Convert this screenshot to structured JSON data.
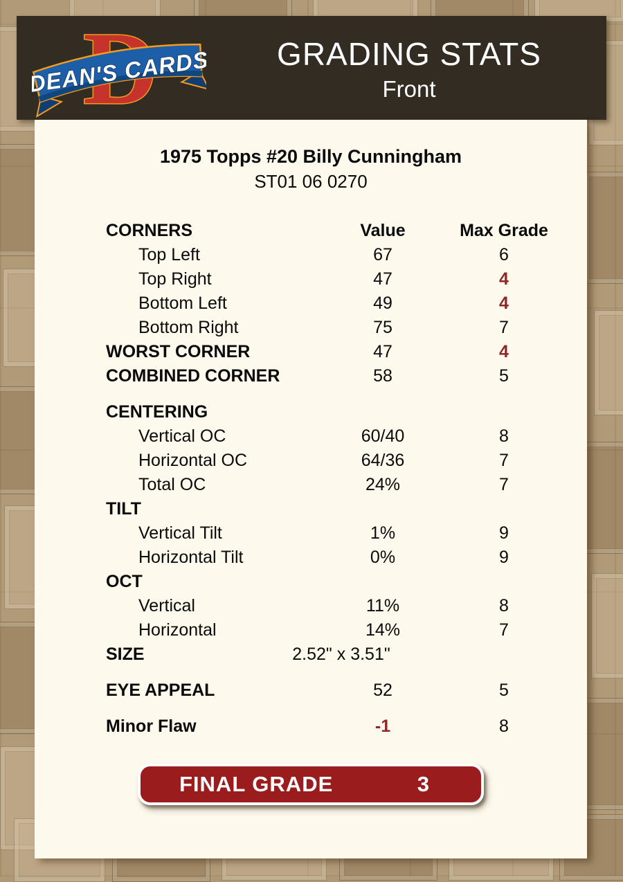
{
  "header": {
    "title": "GRADING STATS",
    "subtitle": "Front",
    "logo_letter": "D",
    "logo_text": "DEAN'S CARDS"
  },
  "card": {
    "title": "1975 Topps #20 Billy Cunningham",
    "serial": "ST01 06 0270"
  },
  "table": {
    "rows": [
      {
        "label": "CORNERS",
        "value": "Value",
        "max": "Max Grade",
        "section": true,
        "headers": true
      },
      {
        "label": "Top Left",
        "value": "67",
        "max": "6",
        "indent": true
      },
      {
        "label": "Top Right",
        "value": "47",
        "max": "4",
        "indent": true,
        "max_red": true
      },
      {
        "label": "Bottom Left",
        "value": "49",
        "max": "4",
        "indent": true,
        "max_red": true
      },
      {
        "label": "Bottom Right",
        "value": "75",
        "max": "7",
        "indent": true
      },
      {
        "label": "WORST CORNER",
        "value": "47",
        "max": "4",
        "section": true,
        "max_red": true
      },
      {
        "label": "COMBINED CORNER",
        "value": "58",
        "max": "5",
        "section": true
      },
      {
        "spacer": true
      },
      {
        "label": "CENTERING",
        "section": true
      },
      {
        "label": "Vertical OC",
        "value": "60/40",
        "max": "8",
        "indent": true
      },
      {
        "label": "Horizontal OC",
        "value": "64/36",
        "max": "7",
        "indent": true
      },
      {
        "label": "Total OC",
        "value": "24%",
        "max": "7",
        "indent": true
      },
      {
        "label": "TILT",
        "section": true
      },
      {
        "label": "Vertical Tilt",
        "value": "1%",
        "max": "9",
        "indent": true
      },
      {
        "label": "Horizontal Tilt",
        "value": "0%",
        "max": "9",
        "indent": true
      },
      {
        "label": "OCT",
        "section": true
      },
      {
        "label": "Vertical",
        "value": "11%",
        "max": "8",
        "indent": true
      },
      {
        "label": "Horizontal",
        "value": "14%",
        "max": "7",
        "indent": true
      },
      {
        "label": "SIZE",
        "value": "2.52\" x 3.51\"",
        "section": true,
        "size_row": true
      },
      {
        "spacer": true
      },
      {
        "label": "EYE APPEAL",
        "value": "52",
        "max": "5",
        "section": true
      },
      {
        "spacer": true
      },
      {
        "label": "Minor Flaw",
        "value": "-1",
        "max": "8",
        "section": true,
        "value_red": true
      }
    ]
  },
  "final_grade": {
    "label": "FINAL GRADE",
    "value": "3"
  },
  "colors": {
    "page_bg": "#b09a77",
    "header_bg": "#322c23",
    "panel_bg": "#fdf9ec",
    "accent_red": "#8e2726",
    "button_red": "#9a1c1d",
    "logo_red": "#c5332c",
    "logo_orange": "#f59c1c",
    "logo_blue": "#1c5fa8"
  }
}
